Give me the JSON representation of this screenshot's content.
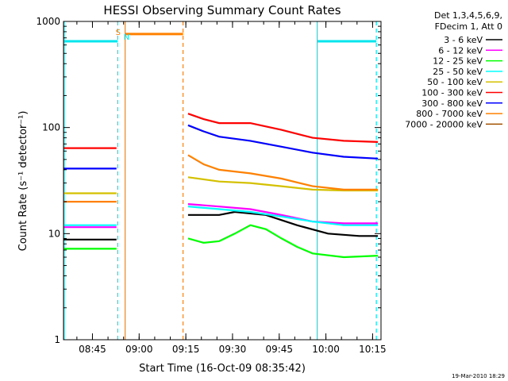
{
  "chart_data": {
    "type": "line",
    "title": "HESSI Observing Summary Count Rates",
    "xlabel": "Start Time (16-Oct-09 08:35:42)",
    "ylabel": "Count Rate (s⁻¹ detector⁻¹)",
    "x_unit": "minutes after 08:35:42",
    "xlim": [
      0,
      102
    ],
    "ylim": [
      1,
      1000
    ],
    "y_scale": "log",
    "x_ticks": [
      "08:45",
      "09:00",
      "09:15",
      "09:30",
      "09:45",
      "10:00",
      "10:15"
    ],
    "y_ticks": [
      "1",
      "10",
      "100",
      "1000"
    ],
    "y_tick_values": [
      1,
      10,
      100,
      1000
    ],
    "legend_header": [
      "Det 1,3,4,5,6,9,",
      "FDecim 1, Att 0"
    ],
    "legend_position": "right, outside plot",
    "footer": "19-Mar-2010 18:29",
    "flags": {
      "saa_label": "S",
      "night_label": "N",
      "saa_level": 760,
      "night_level": 650,
      "saa_interval": [
        19.8,
        38.4
      ],
      "night_intervals": [
        [
          0,
          17.4
        ],
        [
          81.5,
          100.5
        ]
      ]
    },
    "series": [
      {
        "name": "3 - 6 keV",
        "color": "#000000",
        "segments": [
          {
            "x": [
              0,
              17
            ],
            "y": [
              8.8,
              8.8
            ]
          },
          {
            "x": [
              40,
              50,
              55,
              65,
              75,
              85,
              95,
              101
            ],
            "y": [
              15,
              15,
              16,
              15,
              12,
              10,
              9.5,
              9.5
            ]
          }
        ]
      },
      {
        "name": "6 - 12 keV",
        "color": "#ff00ff",
        "segments": [
          {
            "x": [
              0,
              17
            ],
            "y": [
              11.5,
              11.5
            ]
          },
          {
            "x": [
              40,
              50,
              60,
              70,
              80,
              90,
              101
            ],
            "y": [
              19,
              18,
              17,
              15,
              13,
              12.5,
              12.5
            ]
          }
        ]
      },
      {
        "name": "12 - 25 keV",
        "color": "#00ff00",
        "segments": [
          {
            "x": [
              0,
              17
            ],
            "y": [
              7.2,
              7.2
            ]
          },
          {
            "x": [
              40,
              45,
              50,
              55,
              60,
              65,
              70,
              75,
              80,
              90,
              101
            ],
            "y": [
              9,
              8.2,
              8.5,
              10,
              12,
              11,
              9,
              7.5,
              6.5,
              6,
              6.2
            ]
          }
        ]
      },
      {
        "name": "25 - 50 keV",
        "color": "#00ffff",
        "segments": [
          {
            "x": [
              0,
              17
            ],
            "y": [
              12,
              12
            ]
          },
          {
            "x": [
              40,
              50,
              60,
              70,
              80,
              90,
              101
            ],
            "y": [
              18,
              17,
              16,
              14.5,
              13,
              12,
              12
            ]
          }
        ]
      },
      {
        "name": "50 - 100 keV",
        "color": "#d4c000",
        "segments": [
          {
            "x": [
              0,
              17
            ],
            "y": [
              24,
              24
            ]
          },
          {
            "x": [
              40,
              50,
              60,
              70,
              80,
              90,
              101
            ],
            "y": [
              34,
              31,
              30,
              28,
              26,
              25.5,
              25.5
            ]
          }
        ]
      },
      {
        "name": "100 - 300 keV",
        "color": "#ff0000",
        "segments": [
          {
            "x": [
              0,
              17
            ],
            "y": [
              64,
              64
            ]
          },
          {
            "x": [
              40,
              45,
              50,
              60,
              70,
              80,
              90,
              101
            ],
            "y": [
              135,
              120,
              110,
              110,
              95,
              80,
              75,
              73
            ]
          }
        ]
      },
      {
        "name": "300 - 800 keV",
        "color": "#0000ff",
        "segments": [
          {
            "x": [
              0,
              17
            ],
            "y": [
              41,
              41
            ]
          },
          {
            "x": [
              40,
              45,
              50,
              60,
              70,
              80,
              90,
              101
            ],
            "y": [
              105,
              92,
              82,
              75,
              66,
              58,
              53,
              51
            ]
          }
        ]
      },
      {
        "name": "800 - 7000 keV",
        "color": "#ff8000",
        "segments": [
          {
            "x": [
              0,
              17
            ],
            "y": [
              20,
              20
            ]
          },
          {
            "x": [
              40,
              45,
              50,
              60,
              70,
              80,
              90,
              101
            ],
            "y": [
              55,
              45,
              40,
              37,
              33,
              28,
              26,
              26
            ]
          }
        ]
      },
      {
        "name": "7000 - 20000 keV",
        "color": "#a05000",
        "segments": []
      }
    ]
  }
}
